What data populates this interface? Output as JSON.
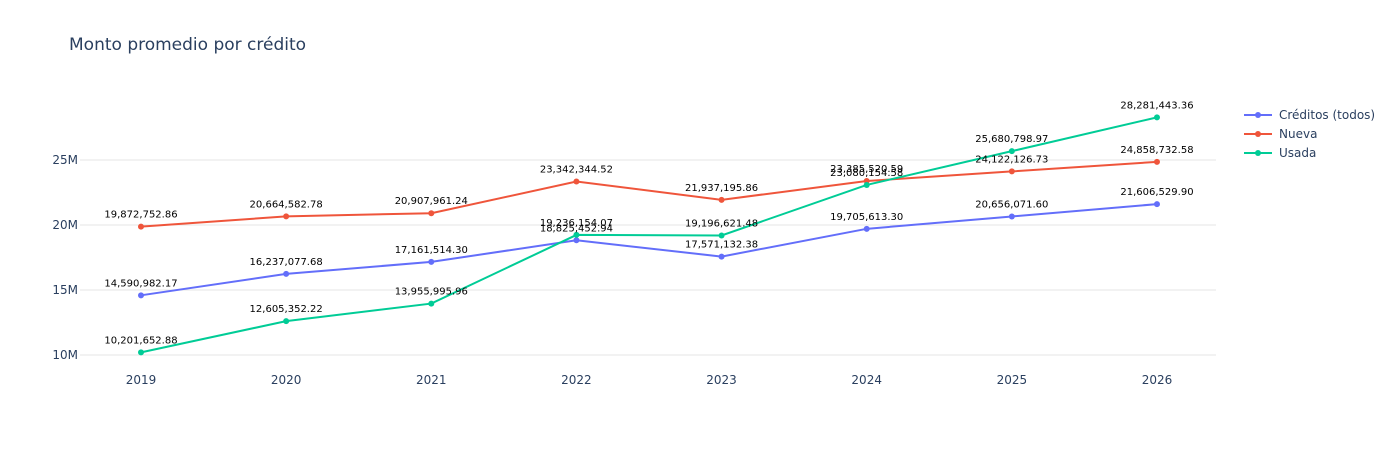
{
  "chart_data": {
    "type": "line",
    "title": "Monto promedio por crédito",
    "xlabel": "",
    "ylabel": "",
    "x": [
      "2019",
      "2020",
      "2021",
      "2022",
      "2023",
      "2024",
      "2025",
      "2026"
    ],
    "ylim": [
      9800000,
      30000000
    ],
    "yticks": [
      {
        "value": 10000000,
        "label": "10M"
      },
      {
        "value": 15000000,
        "label": "15M"
      },
      {
        "value": 20000000,
        "label": "20M"
      },
      {
        "value": 25000000,
        "label": "25M"
      }
    ],
    "grid": true,
    "legend_position": "top-right",
    "series": [
      {
        "name": "Créditos (todos)",
        "color": "#636efa",
        "values": [
          14590982.17,
          16237077.68,
          17161514.3,
          18825452.94,
          17571132.38,
          19705613.3,
          20656071.6,
          21606529.9
        ],
        "labels": [
          "14,590,982.17",
          "16,237,077.68",
          "17,161,514.30",
          "18,825,452.94",
          "17,571,132.38",
          "19,705,613.30",
          "20,656,071.60",
          "21,606,529.90"
        ]
      },
      {
        "name": "Nueva",
        "color": "#ef553b",
        "values": [
          19872752.86,
          20664582.78,
          20907961.24,
          23342344.52,
          21937195.86,
          23385520.59,
          24122126.73,
          24858732.58
        ],
        "labels": [
          "19,872,752.86",
          "20,664,582.78",
          "20,907,961.24",
          "23,342,344.52",
          "21,937,195.86",
          "23,385,520.59",
          "24,122,126.73",
          "24,858,732.58"
        ]
      },
      {
        "name": "Usada",
        "color": "#00cc96",
        "values": [
          10201652.88,
          12605352.22,
          13955995.96,
          19236154.07,
          19196621.48,
          23080154.58,
          25680798.97,
          28281443.36
        ],
        "labels": [
          "10,201,652.88",
          "12,605,352.22",
          "13,955,995.96",
          "19,236,154.07",
          "19,196,621.48",
          "23,080,154.58",
          "25,680,798.97",
          "28,281,443.36"
        ]
      }
    ]
  }
}
